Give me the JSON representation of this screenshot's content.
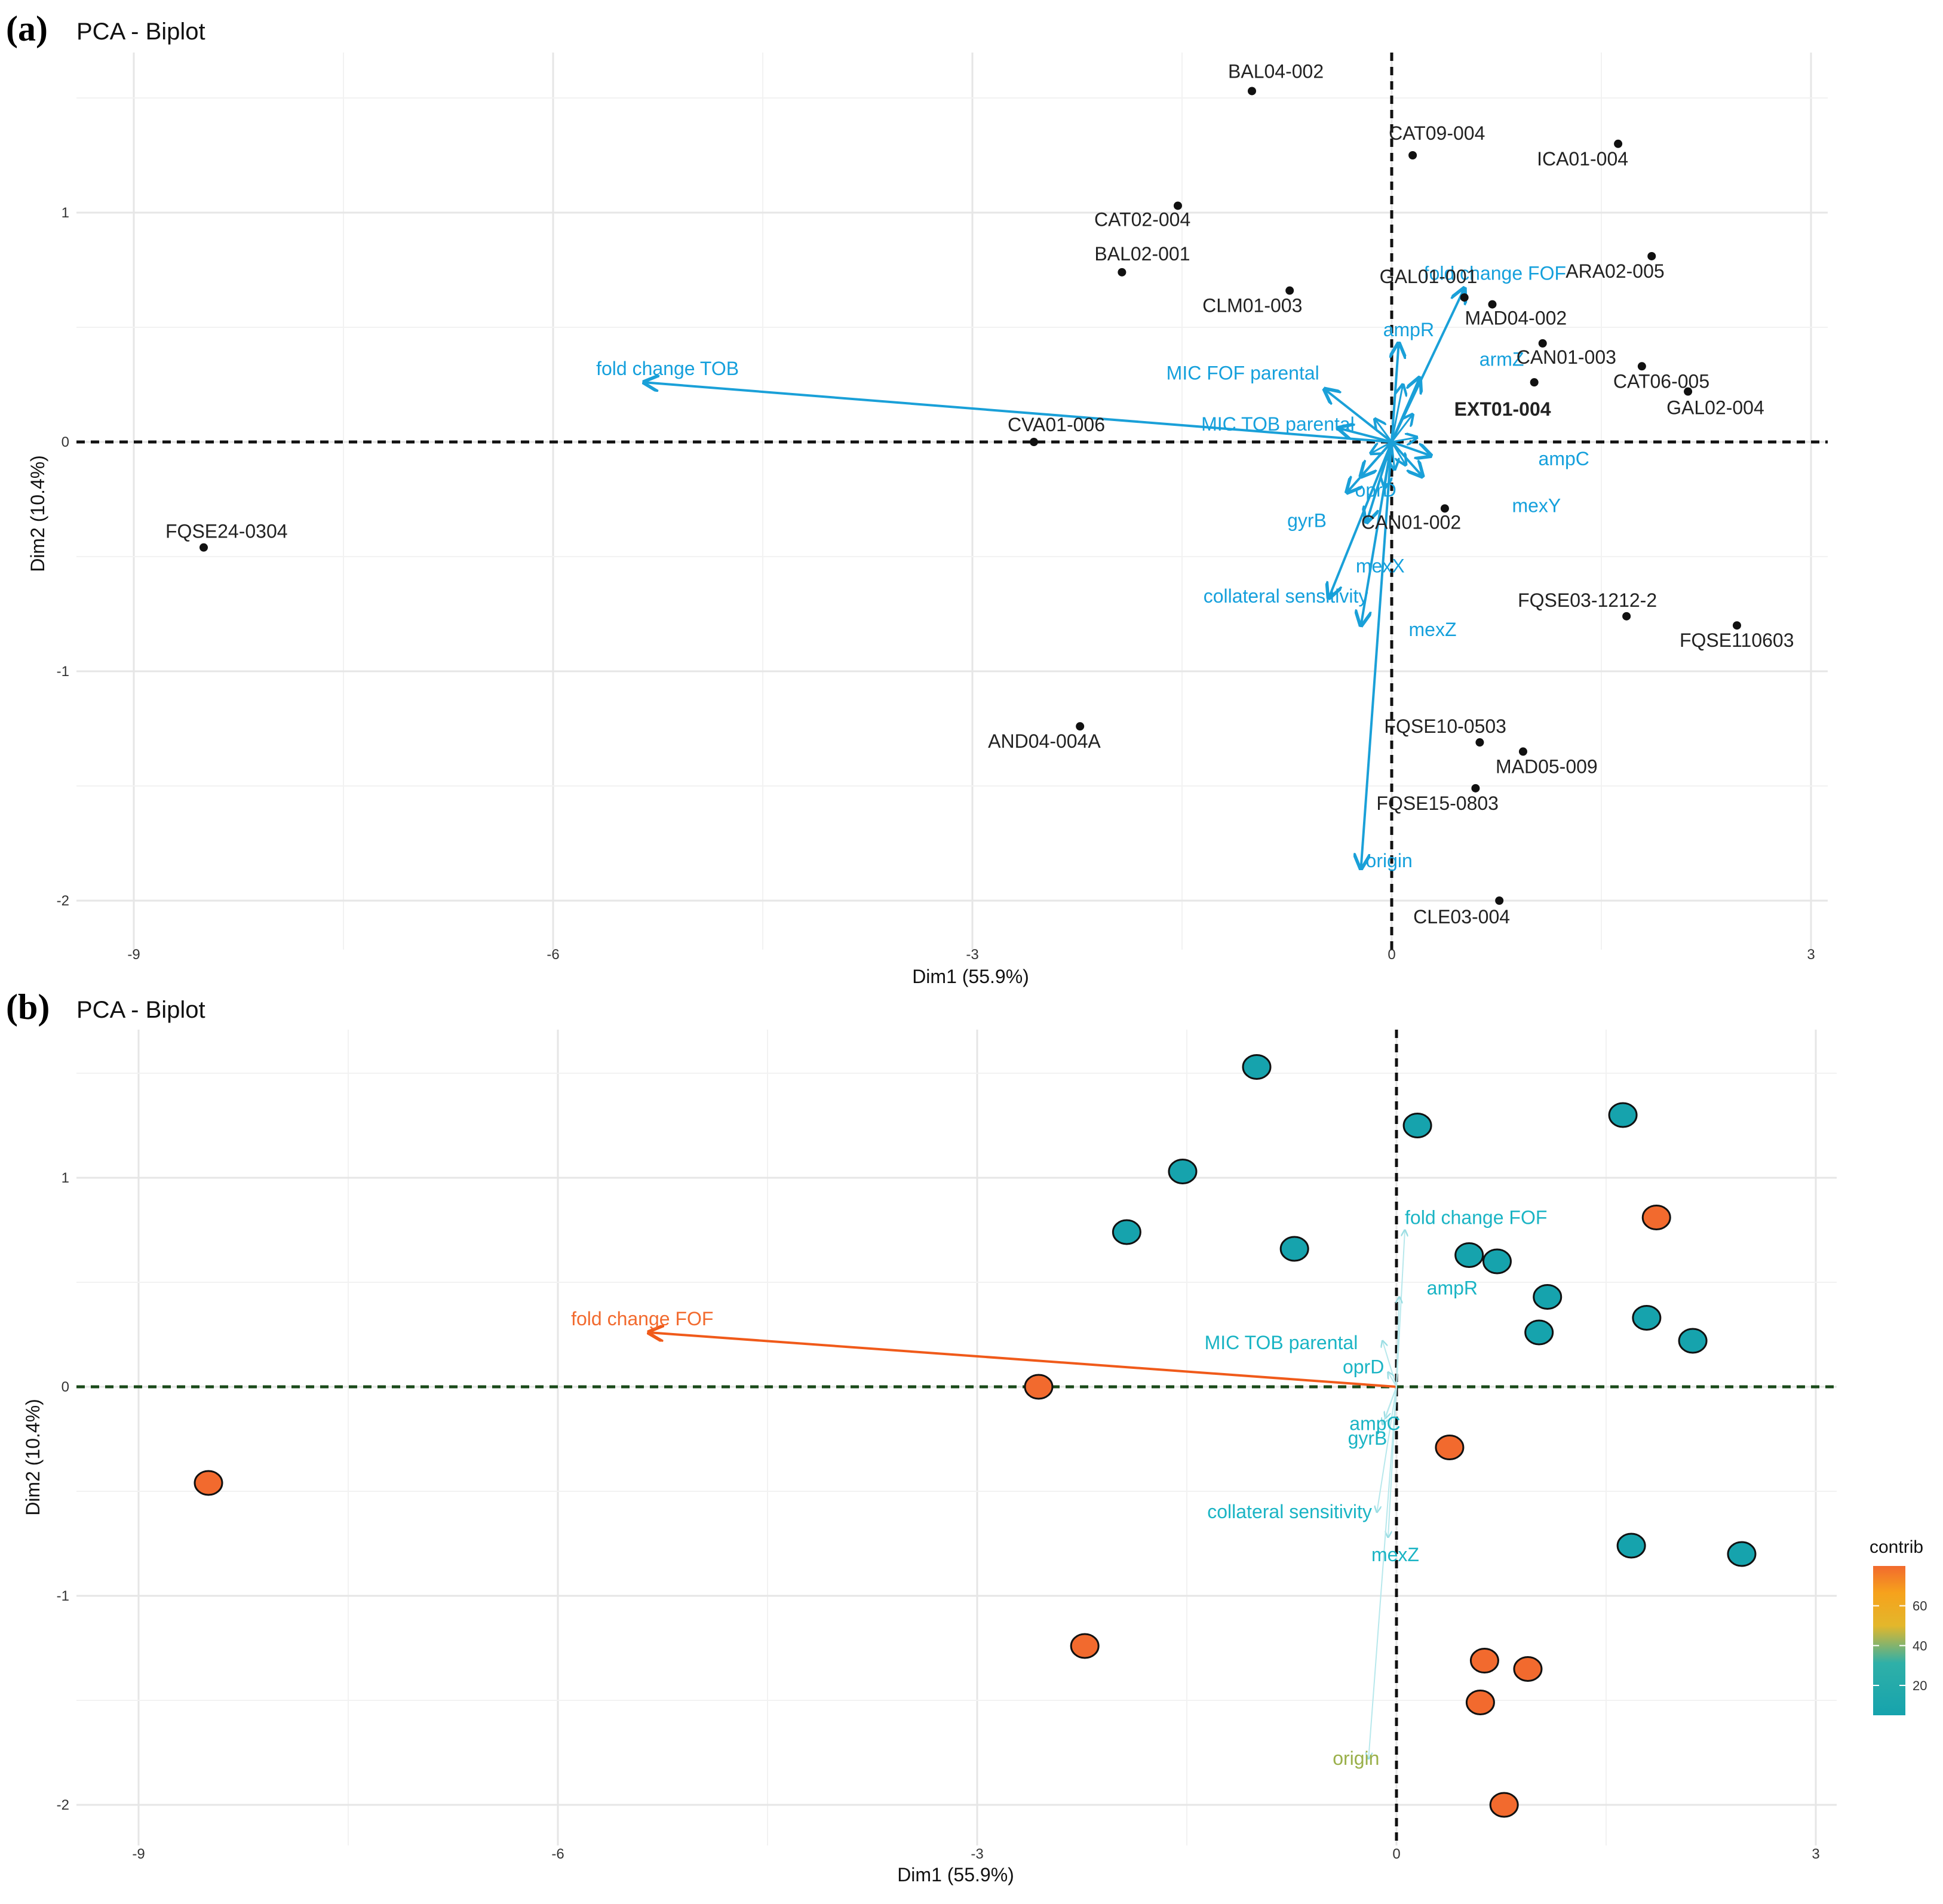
{
  "figure": {
    "panel_a_label": "(a)",
    "panel_b_label": "(b)",
    "panel_a_title": "PCA - Biplot",
    "panel_b_title": "PCA - Biplot"
  },
  "colors": {
    "var_arrow": "#1aa0d8",
    "var_text_a": "#15a0dc",
    "var_text_b": "#1ab4c4",
    "hot": "#f26a2e",
    "hot_b_arrow": "#f05a1a",
    "cold": "#16a3ad",
    "origin_b": "#9ab04a",
    "bold_label": "#111111"
  },
  "chart_data": [
    {
      "type": "scatter",
      "subtype": "pca-biplot",
      "title": "PCA - Biplot",
      "xlabel": "Dim1 (55.9%)",
      "ylabel": "Dim2 (10.4%)",
      "xlim": [
        -9,
        3
      ],
      "ylim": [
        -2.1,
        1.7
      ],
      "xticks": [
        -9,
        -6,
        -3,
        0,
        3
      ],
      "yticks": [
        -2,
        -1,
        0,
        1
      ],
      "xtick_labels": [
        "-9",
        "-6",
        "-3",
        "0",
        "3"
      ],
      "ytick_labels": [
        "-2",
        "-1",
        "0",
        "1"
      ],
      "grid": true,
      "individuals": [
        {
          "name": "BAL04-002",
          "x": -1.0,
          "y": 1.53
        },
        {
          "name": "CAT09-004",
          "x": 0.15,
          "y": 1.25
        },
        {
          "name": "ICA01-004",
          "x": 1.62,
          "y": 1.3
        },
        {
          "name": "CAT02-004",
          "x": -1.53,
          "y": 1.03
        },
        {
          "name": "BAL02-001",
          "x": -1.93,
          "y": 0.74
        },
        {
          "name": "CLM01-003",
          "x": -0.73,
          "y": 0.66
        },
        {
          "name": "ARA02-005",
          "x": 1.86,
          "y": 0.81
        },
        {
          "name": "GAL01-001",
          "x": 0.52,
          "y": 0.63
        },
        {
          "name": "MAD04-002",
          "x": 0.72,
          "y": 0.6
        },
        {
          "name": "CAN01-003",
          "x": 1.08,
          "y": 0.43
        },
        {
          "name": "CAT06-005",
          "x": 1.79,
          "y": 0.33
        },
        {
          "name": "EXT01-004",
          "x": 1.02,
          "y": 0.26
        },
        {
          "name": "GAL02-004",
          "x": 2.12,
          "y": 0.22
        },
        {
          "name": "CVA01-006",
          "x": -2.56,
          "y": 0.0
        },
        {
          "name": "FQSE24-0304",
          "x": -8.5,
          "y": -0.46
        },
        {
          "name": "CAN01-002",
          "x": 0.38,
          "y": -0.29
        },
        {
          "name": "FQSE03-1212-2",
          "x": 1.68,
          "y": -0.76
        },
        {
          "name": "FQSE110603",
          "x": 2.47,
          "y": -0.8
        },
        {
          "name": "AND04-004A",
          "x": -2.23,
          "y": -1.24
        },
        {
          "name": "FQSE10-0503",
          "x": 0.63,
          "y": -1.31
        },
        {
          "name": "MAD05-009",
          "x": 0.94,
          "y": -1.35
        },
        {
          "name": "FQSE15-0803",
          "x": 0.6,
          "y": -1.51
        },
        {
          "name": "CLE03-004",
          "x": 0.77,
          "y": -2.0
        }
      ],
      "variables": [
        {
          "name": "fold change TOB",
          "x": -5.35,
          "y": 0.26
        },
        {
          "name": "fold change FOF",
          "x": 0.52,
          "y": 0.67
        },
        {
          "name": "ampR",
          "x": 0.05,
          "y": 0.43
        },
        {
          "name": "armZ",
          "x": 0.2,
          "y": 0.28
        },
        {
          "name": "MIC FOF parental",
          "x": -0.48,
          "y": 0.23
        },
        {
          "name": "MIC TOB parental",
          "x": -0.38,
          "y": 0.06
        },
        {
          "name": "ampC",
          "x": 0.28,
          "y": -0.06
        },
        {
          "name": "mexY",
          "x": 0.22,
          "y": -0.15
        },
        {
          "name": "oprD",
          "x": -0.22,
          "y": -0.15
        },
        {
          "name": "gyrB",
          "x": -0.32,
          "y": -0.22
        },
        {
          "name": "mexX",
          "x": -0.18,
          "y": -0.35
        },
        {
          "name": "collateral sensitivity",
          "x": -0.45,
          "y": -0.68
        },
        {
          "name": "mexZ",
          "x": -0.22,
          "y": -0.8
        },
        {
          "name": "origin",
          "x": -0.22,
          "y": -1.86
        }
      ]
    },
    {
      "type": "scatter",
      "subtype": "pca-biplot-contrib",
      "title": "PCA - Biplot",
      "xlabel": "Dim1 (55.9%)",
      "ylabel": "Dim2 (10.4%)",
      "xlim": [
        -9,
        3
      ],
      "ylim": [
        -2.1,
        1.7
      ],
      "xticks": [
        -9,
        -6,
        -3,
        0,
        3
      ],
      "yticks": [
        -2,
        -1,
        0,
        1
      ],
      "xtick_labels": [
        "-9",
        "-6",
        "-3",
        "0",
        "3"
      ],
      "ytick_labels": [
        "-2",
        "-1",
        "0",
        "1"
      ],
      "grid": true,
      "legend": {
        "title": "contrib",
        "ticks": [
          20,
          40,
          60
        ],
        "tick_labels": [
          "20",
          "40",
          "60"
        ],
        "position": "right"
      },
      "points": [
        {
          "x": -1.0,
          "y": 1.53,
          "group": "cold"
        },
        {
          "x": 0.15,
          "y": 1.25,
          "group": "cold"
        },
        {
          "x": 1.62,
          "y": 1.3,
          "group": "cold"
        },
        {
          "x": -1.53,
          "y": 1.03,
          "group": "cold"
        },
        {
          "x": -1.93,
          "y": 0.74,
          "group": "cold"
        },
        {
          "x": -0.73,
          "y": 0.66,
          "group": "cold"
        },
        {
          "x": 1.86,
          "y": 0.81,
          "group": "hot"
        },
        {
          "x": 0.52,
          "y": 0.63,
          "group": "cold"
        },
        {
          "x": 0.72,
          "y": 0.6,
          "group": "cold"
        },
        {
          "x": 1.08,
          "y": 0.43,
          "group": "cold"
        },
        {
          "x": 1.79,
          "y": 0.33,
          "group": "cold"
        },
        {
          "x": 1.02,
          "y": 0.26,
          "group": "cold"
        },
        {
          "x": 2.12,
          "y": 0.22,
          "group": "cold"
        },
        {
          "x": -2.56,
          "y": 0.0,
          "group": "hot"
        },
        {
          "x": -8.5,
          "y": -0.46,
          "group": "hot"
        },
        {
          "x": 0.38,
          "y": -0.29,
          "group": "hot"
        },
        {
          "x": 1.68,
          "y": -0.76,
          "group": "cold"
        },
        {
          "x": 2.47,
          "y": -0.8,
          "group": "cold"
        },
        {
          "x": -2.23,
          "y": -1.24,
          "group": "hot"
        },
        {
          "x": 0.63,
          "y": -1.31,
          "group": "hot"
        },
        {
          "x": 0.94,
          "y": -1.35,
          "group": "hot"
        },
        {
          "x": 0.6,
          "y": -1.51,
          "group": "hot"
        },
        {
          "x": 0.77,
          "y": -2.0,
          "group": "hot"
        }
      ],
      "variables": [
        {
          "name": "fold change FOF",
          "x": -5.35,
          "y": 0.26,
          "group": "hot"
        },
        {
          "name": "fold change FOF",
          "x": 0.06,
          "y": 0.75,
          "group": "cold"
        },
        {
          "name": "ampR",
          "x": 0.02,
          "y": 0.43,
          "group": "cold"
        },
        {
          "name": "MIC TOB parental",
          "x": -0.1,
          "y": 0.22,
          "group": "cold"
        },
        {
          "name": "oprD",
          "x": -0.06,
          "y": 0.07,
          "group": "cold"
        },
        {
          "name": "ampC",
          "x": -0.08,
          "y": -0.15,
          "group": "cold"
        },
        {
          "name": "gyrB",
          "x": -0.1,
          "y": -0.18,
          "group": "cold"
        },
        {
          "name": "collateral sensitivity",
          "x": -0.14,
          "y": -0.6,
          "group": "cold"
        },
        {
          "name": "mexZ",
          "x": -0.06,
          "y": -0.72,
          "group": "cold"
        },
        {
          "name": "origin",
          "x": -0.2,
          "y": -1.78,
          "group": "faint"
        }
      ]
    }
  ]
}
